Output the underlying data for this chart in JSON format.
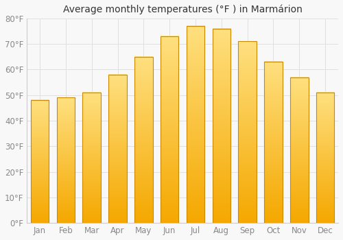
{
  "months": [
    "Jan",
    "Feb",
    "Mar",
    "Apr",
    "May",
    "Jun",
    "Jul",
    "Aug",
    "Sep",
    "Oct",
    "Nov",
    "Dec"
  ],
  "temperatures": [
    48,
    49,
    51,
    58,
    65,
    73,
    77,
    76,
    71,
    63,
    57,
    51
  ],
  "bar_color_bottom": "#F5A800",
  "bar_color_top": "#FFE080",
  "bar_edge_color": "#CC8800",
  "title": "Average monthly temperatures (°F ) in Marmárion",
  "ylim": [
    0,
    80
  ],
  "yticks": [
    0,
    10,
    20,
    30,
    40,
    50,
    60,
    70,
    80
  ],
  "ytick_labels": [
    "0°F",
    "10°F",
    "20°F",
    "30°F",
    "40°F",
    "50°F",
    "60°F",
    "70°F",
    "80°F"
  ],
  "background_color": "#f8f8f8",
  "plot_bg_color": "#f8f8f8",
  "grid_color": "#e0e0e0",
  "title_fontsize": 10,
  "tick_fontsize": 8.5,
  "tick_color": "#888888",
  "bar_width": 0.7
}
